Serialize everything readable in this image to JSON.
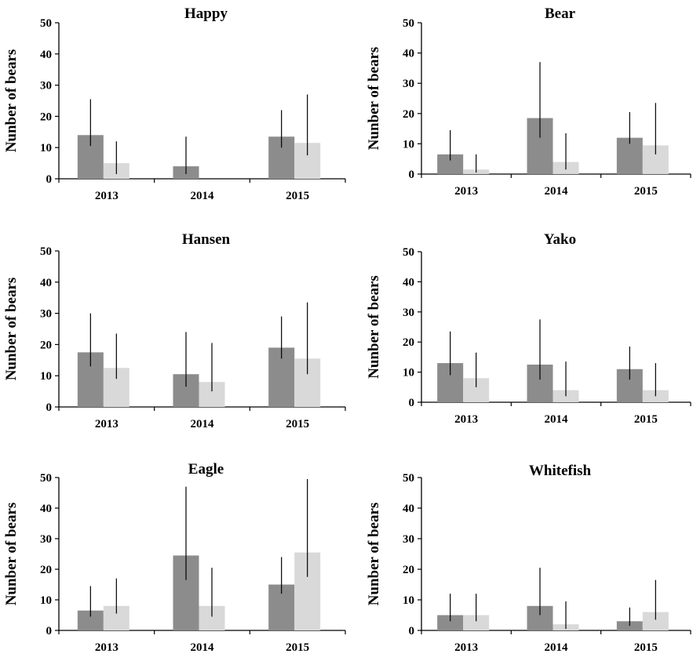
{
  "figure": {
    "ylabel": "Nunber of bears",
    "yticks": [
      0,
      10,
      20,
      30,
      40,
      50
    ],
    "bar_colors": {
      "dark": "#8c8c8c",
      "light": "#d9d9d9"
    }
  },
  "chart_data": [
    {
      "type": "bar",
      "title": "Happy",
      "ylabel": "Nunber of bears",
      "ylim": [
        0,
        50
      ],
      "categories": [
        "2013",
        "2014",
        "2015"
      ],
      "series": [
        {
          "values": [
            14,
            4,
            13.5
          ],
          "error_low": [
            10.5,
            1.5,
            10
          ],
          "error_high": [
            25.5,
            13.5,
            22
          ],
          "color": "#8c8c8c"
        },
        {
          "values": [
            5,
            0,
            11.5
          ],
          "error_low": [
            1.5,
            0,
            7.5
          ],
          "error_high": [
            12,
            0,
            27
          ],
          "color": "#d9d9d9"
        }
      ]
    },
    {
      "type": "bar",
      "title": "Bear",
      "ylabel": "Nunber of bears",
      "ylim": [
        0,
        50
      ],
      "categories": [
        "2013",
        "2014",
        "2015"
      ],
      "series": [
        {
          "values": [
            6.5,
            18.5,
            12
          ],
          "error_low": [
            4.5,
            12,
            10
          ],
          "error_high": [
            14.5,
            37,
            20.5
          ],
          "color": "#8c8c8c"
        },
        {
          "values": [
            1.5,
            4,
            9.5
          ],
          "error_low": [
            0.5,
            1.5,
            6.5
          ],
          "error_high": [
            6.5,
            13.5,
            23.5
          ],
          "color": "#d9d9d9"
        }
      ]
    },
    {
      "type": "bar",
      "title": "Hansen",
      "ylabel": "Nunber of bears",
      "ylim": [
        0,
        50
      ],
      "categories": [
        "2013",
        "2014",
        "2015"
      ],
      "series": [
        {
          "values": [
            17.5,
            10.5,
            19
          ],
          "error_low": [
            13,
            6.5,
            15.5
          ],
          "error_high": [
            30,
            24,
            29
          ],
          "color": "#8c8c8c"
        },
        {
          "values": [
            12.5,
            8,
            15.5
          ],
          "error_low": [
            9,
            5,
            10.5
          ],
          "error_high": [
            23.5,
            20.5,
            33.5
          ],
          "color": "#d9d9d9"
        }
      ]
    },
    {
      "type": "bar",
      "title": "Yako",
      "ylabel": "Nunber of bears",
      "ylim": [
        0,
        50
      ],
      "categories": [
        "2013",
        "2014",
        "2015"
      ],
      "series": [
        {
          "values": [
            13,
            12.5,
            11
          ],
          "error_low": [
            9,
            7.5,
            7.5
          ],
          "error_high": [
            23.5,
            27.5,
            18.5
          ],
          "color": "#8c8c8c"
        },
        {
          "values": [
            8,
            4,
            4
          ],
          "error_low": [
            5,
            2,
            2
          ],
          "error_high": [
            16.5,
            13.5,
            13
          ],
          "color": "#d9d9d9"
        }
      ]
    },
    {
      "type": "bar",
      "title": "Eagle",
      "ylabel": "Nunber of bears",
      "ylim": [
        0,
        50
      ],
      "categories": [
        "2013",
        "2014",
        "2015"
      ],
      "series": [
        {
          "values": [
            6.5,
            24.5,
            15
          ],
          "error_low": [
            4.5,
            16.5,
            12
          ],
          "error_high": [
            14.5,
            47,
            24
          ],
          "color": "#8c8c8c"
        },
        {
          "values": [
            8,
            8,
            25.5
          ],
          "error_low": [
            5.5,
            4.5,
            17.5
          ],
          "error_high": [
            17,
            20.5,
            49.5
          ],
          "color": "#d9d9d9"
        }
      ]
    },
    {
      "type": "bar",
      "title": "Whitefish",
      "ylabel": "Nunber of bears",
      "ylim": [
        0,
        50
      ],
      "categories": [
        "2013",
        "2014",
        "2015"
      ],
      "series": [
        {
          "values": [
            5,
            8,
            3
          ],
          "error_low": [
            3,
            5,
            1.5
          ],
          "error_high": [
            12,
            20.5,
            7.5
          ],
          "color": "#8c8c8c"
        },
        {
          "values": [
            5,
            2,
            6
          ],
          "error_low": [
            3,
            0.5,
            3.5
          ],
          "error_high": [
            12,
            9.5,
            16.5
          ],
          "color": "#d9d9d9"
        }
      ]
    }
  ]
}
